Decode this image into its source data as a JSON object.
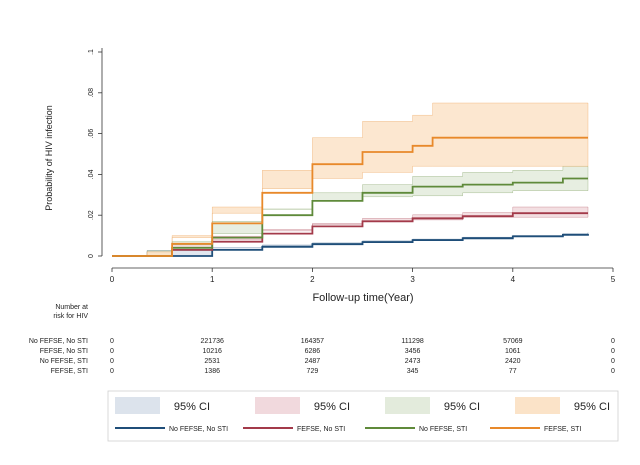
{
  "chart_data": {
    "type": "line",
    "title": "",
    "xlabel": "Follow-up time(Year)",
    "ylabel": "Probability of HIV infection",
    "xlim": [
      0,
      5
    ],
    "ylim": [
      0,
      0.1
    ],
    "x_ticks": [
      0,
      1,
      2,
      3,
      4,
      5
    ],
    "x_tick_labels": [
      "0",
      "1",
      "2",
      "3",
      "4",
      "5"
    ],
    "y_ticks": [
      0,
      0.02,
      0.04,
      0.06,
      0.08,
      0.1
    ],
    "y_tick_labels": [
      "0",
      ".02",
      ".04",
      ".06",
      ".08",
      ".1"
    ],
    "grid": false,
    "legend_position": "bottom",
    "series": [
      {
        "name": "No FEFSE, No STI",
        "color": "#1f4e79",
        "band_color": "#dce3ec",
        "x": [
          0,
          0.35,
          1.0,
          1.5,
          2.0,
          2.5,
          3.0,
          3.5,
          4.0,
          4.5,
          4.75
        ],
        "y": [
          0,
          0,
          0.003,
          0.0045,
          0.0058,
          0.0068,
          0.0078,
          0.0087,
          0.0096,
          0.0104,
          0.0108
        ],
        "lower": [
          0,
          0,
          0.0027,
          0.0041,
          0.0054,
          0.0064,
          0.0074,
          0.0083,
          0.0092,
          0.0099,
          0.0102
        ],
        "upper": [
          0,
          0,
          0.0033,
          0.0049,
          0.0062,
          0.0072,
          0.0082,
          0.0091,
          0.0101,
          0.0109,
          0.0114
        ]
      },
      {
        "name": "FEFSE, No STI",
        "color": "#a33a4a",
        "band_color": "#f1d9dd",
        "x": [
          0,
          0.35,
          0.6,
          1.0,
          1.5,
          2.0,
          2.5,
          3.0,
          3.5,
          4.0,
          4.5,
          4.75
        ],
        "y": [
          0,
          0,
          0.003,
          0.007,
          0.011,
          0.0145,
          0.017,
          0.0185,
          0.0195,
          0.021,
          0.021,
          0.021
        ],
        "lower": [
          0,
          0,
          0.002,
          0.0058,
          0.0097,
          0.013,
          0.0155,
          0.0168,
          0.0177,
          0.019,
          0.019,
          0.019
        ],
        "upper": [
          0,
          0,
          0.004,
          0.0082,
          0.0123,
          0.016,
          0.0185,
          0.0202,
          0.0213,
          0.024,
          0.024,
          0.024
        ]
      },
      {
        "name": "No FEFSE, STI",
        "color": "#5f8a3a",
        "band_color": "#e3ebdc",
        "x": [
          0,
          0.35,
          0.6,
          1.0,
          1.5,
          2.0,
          2.5,
          3.0,
          3.5,
          4.0,
          4.5,
          4.75
        ],
        "y": [
          0,
          0,
          0.004,
          0.009,
          0.02,
          0.027,
          0.031,
          0.034,
          0.035,
          0.036,
          0.038,
          0.038
        ],
        "lower": [
          0,
          0,
          0.0025,
          0.007,
          0.017,
          0.023,
          0.027,
          0.029,
          0.0295,
          0.031,
          0.032,
          0.032
        ],
        "upper": [
          0,
          0,
          0.0055,
          0.011,
          0.023,
          0.031,
          0.035,
          0.039,
          0.041,
          0.042,
          0.044,
          0.044
        ]
      },
      {
        "name": "FEFSE, STI",
        "color": "#e8892a",
        "band_color": "#fbe3c8",
        "x": [
          0,
          0.35,
          0.6,
          1.0,
          1.5,
          2.0,
          2.5,
          3.0,
          3.2,
          3.5,
          4.0,
          4.5,
          4.75
        ],
        "y": [
          0,
          0,
          0.006,
          0.016,
          0.031,
          0.045,
          0.051,
          0.054,
          0.058,
          0.058,
          0.058,
          0.058,
          0.058
        ],
        "lower": [
          0,
          0,
          0.002,
          0.009,
          0.021,
          0.033,
          0.038,
          0.041,
          0.044,
          0.044,
          0.044,
          0.044,
          0.044
        ],
        "upper": [
          0,
          0,
          0.01,
          0.024,
          0.042,
          0.058,
          0.066,
          0.069,
          0.075,
          0.075,
          0.075,
          0.075,
          0.075
        ]
      }
    ],
    "risk_table": {
      "title": "Number at risk for HIV",
      "title_lines": [
        "Number at",
        "risk for HIV"
      ],
      "columns_x": [
        0,
        1,
        2,
        3,
        4,
        5
      ],
      "rows": [
        {
          "label": "No FEFSE, No STI",
          "values": [
            "0",
            "221736",
            "164357",
            "111298",
            "57069",
            "0"
          ]
        },
        {
          "label": "FEFSE, No STI",
          "values": [
            "0",
            "10216",
            "6286",
            "3456",
            "1061",
            "0"
          ]
        },
        {
          "label": "No FEFSE, STI",
          "values": [
            "0",
            "2531",
            "2487",
            "2473",
            "2420",
            "0"
          ]
        },
        {
          "label": "FEFSE, STI",
          "values": [
            "0",
            "1386",
            "729",
            "345",
            "77",
            "0"
          ]
        }
      ]
    },
    "legend": {
      "ci_label": "95% CI",
      "ci_entries": [
        "95% CI",
        "95% CI",
        "95% CI",
        "95% CI"
      ]
    }
  }
}
